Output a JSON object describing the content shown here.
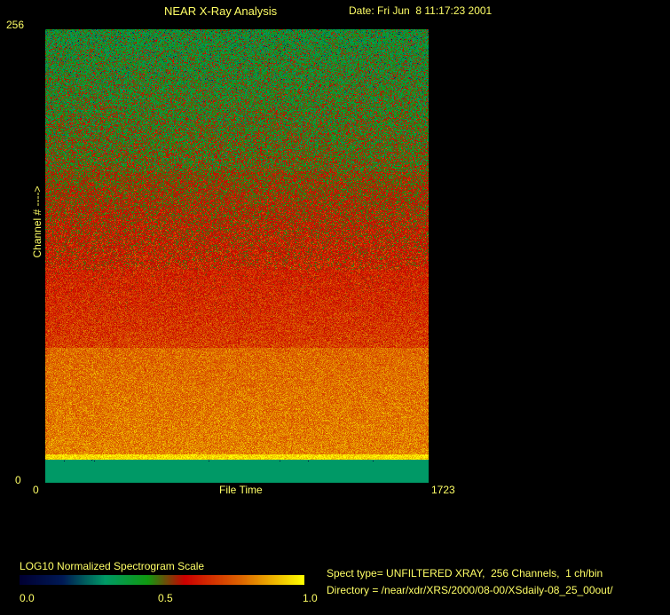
{
  "header": {
    "title": "NEAR X-Ray Analysis",
    "date": "Date: Fri Jun  8 11:17:23 2001"
  },
  "chart_data": {
    "type": "heatmap",
    "xlabel": "File Time",
    "ylabel": "Channel # ---->",
    "xlim": [
      0,
      1723
    ],
    "ylim": [
      0,
      256
    ],
    "x_tick_labels": [
      "0",
      "1723"
    ],
    "y_tick_labels": [
      "0",
      "256"
    ],
    "mean_scale_profile": [
      {
        "channels": [
          0,
          12
        ],
        "value": 0.3
      },
      {
        "channels": [
          13,
          15
        ],
        "value": 0.95
      },
      {
        "channels": [
          16,
          75
        ],
        "value": 0.8
      },
      {
        "channels": [
          76,
          120
        ],
        "value": 0.67
      },
      {
        "channels": [
          121,
          175
        ],
        "value": 0.57
      },
      {
        "channels": [
          176,
          256
        ],
        "value": 0.44
      }
    ],
    "colorbar": {
      "title": "LOG10 Normalized Spectrogram Scale",
      "range": [
        0.0,
        1.0
      ],
      "tick_labels": [
        "0.0",
        "0.5",
        "1.0"
      ],
      "colormap": [
        "#000033",
        "#001a55",
        "#009966",
        "#119911",
        "#cc0000",
        "#dd6600",
        "#ffff00"
      ]
    }
  },
  "info": {
    "spect_type": "Spect type= UNFILTERED XRAY,  256 Channels,  1 ch/bin",
    "directory": "Directory = /near/xdr/XRS/2000/08-00/XSdaily-08_25_00out/"
  }
}
